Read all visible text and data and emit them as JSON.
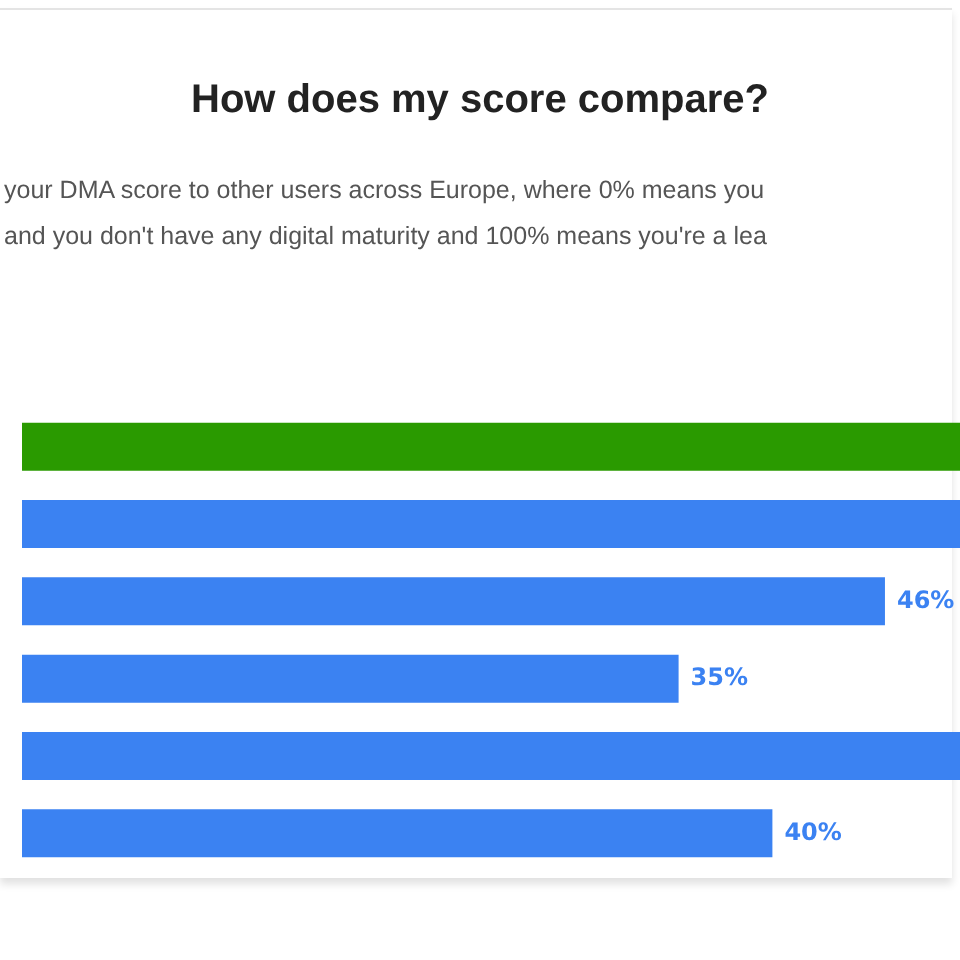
{
  "chart_data": {
    "type": "bar",
    "orientation": "horizontal",
    "title": "How does my score compare?",
    "subtitle": "your DMA score to other users across Europe, where 0% means you\nand you don't have any digital maturity and 100% means you're a lea",
    "categories": [
      null,
      null,
      null,
      null,
      null,
      null
    ],
    "values": [
      50,
      50,
      46,
      35,
      50,
      40
    ],
    "colors": [
      "#2a9a00",
      "#3b82f2",
      "#3b82f2",
      "#3b82f2",
      "#3b82f2",
      "#3b82f2"
    ],
    "value_labels": [
      null,
      null,
      "46%",
      "35%",
      null,
      "40%"
    ],
    "xlim": [
      0,
      50
    ],
    "tick_labels": false,
    "legend": false
  }
}
